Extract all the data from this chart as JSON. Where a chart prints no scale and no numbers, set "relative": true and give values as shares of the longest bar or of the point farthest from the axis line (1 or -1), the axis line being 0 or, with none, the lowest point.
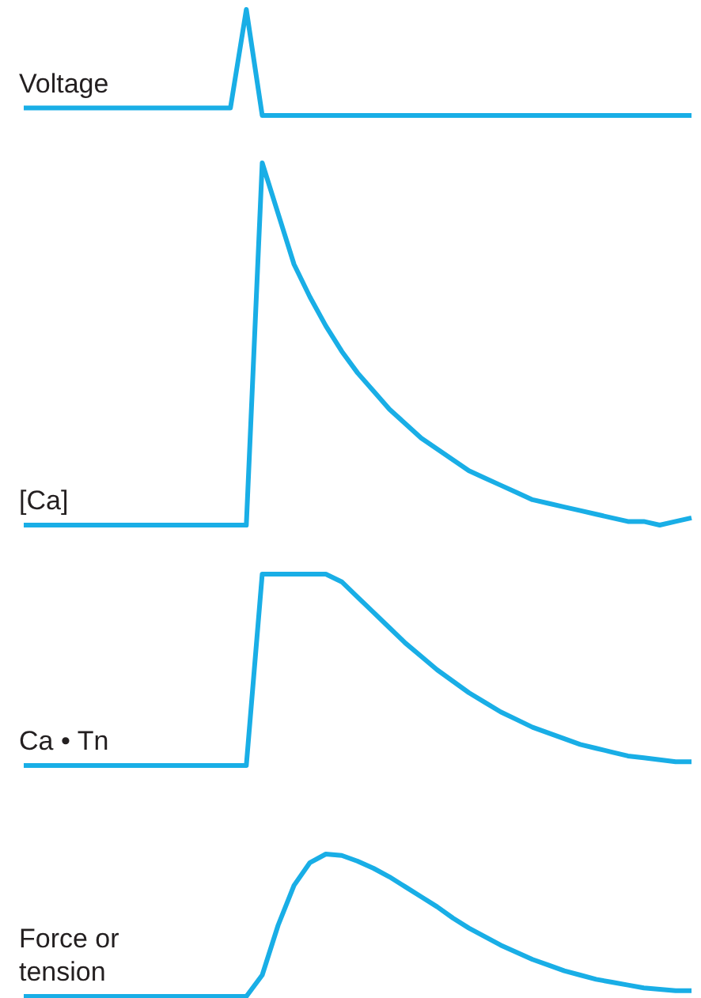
{
  "chart_data": [
    {
      "type": "line",
      "relative": true,
      "legend": false,
      "marker": "none",
      "categories": [
        null,
        null,
        null,
        null,
        null,
        null,
        null,
        null,
        null,
        null,
        null,
        null,
        null,
        null,
        null,
        null,
        null,
        null,
        null,
        null,
        null,
        null,
        null,
        null,
        null,
        null,
        null,
        null,
        null,
        null,
        null,
        null,
        null,
        null,
        null,
        null,
        null,
        null,
        null,
        null,
        null,
        null,
        null
      ],
      "series": [
        {
          "name": "Voltage",
          "color": "#19aee6",
          "values": [
            0.07,
            0.07,
            0.07,
            0.07,
            0.07,
            0.07,
            0.07,
            0.07,
            0.07,
            0.07,
            0.07,
            0.07,
            0.07,
            0.07,
            1,
            0,
            0,
            0,
            0,
            0,
            0,
            0,
            0,
            0,
            0,
            0,
            0,
            0,
            0,
            0,
            0,
            0,
            0,
            0,
            0,
            0,
            0,
            0,
            0,
            0,
            0,
            0,
            0
          ]
        }
      ]
    },
    {
      "type": "line",
      "relative": true,
      "legend": false,
      "marker": "none",
      "categories": [
        null,
        null,
        null,
        null,
        null,
        null,
        null,
        null,
        null,
        null,
        null,
        null,
        null,
        null,
        null,
        null,
        null,
        null,
        null,
        null,
        null,
        null,
        null,
        null,
        null,
        null,
        null,
        null,
        null,
        null,
        null,
        null,
        null,
        null,
        null,
        null,
        null,
        null,
        null,
        null,
        null,
        null,
        null
      ],
      "series": [
        {
          "name": "[Ca]",
          "color": "#19aee6",
          "values": [
            0,
            0,
            0,
            0,
            0,
            0,
            0,
            0,
            0,
            0,
            0,
            0,
            0,
            0,
            0,
            1,
            0.86,
            0.72,
            0.63,
            0.55,
            0.48,
            0.42,
            0.37,
            0.32,
            0.28,
            0.24,
            0.21,
            0.18,
            0.15,
            0.13,
            0.11,
            0.09,
            0.07,
            0.06,
            0.05,
            0.04,
            0.03,
            0.02,
            0.01,
            0.01,
            0,
            0.01,
            0.02
          ]
        }
      ]
    },
    {
      "type": "line",
      "relative": true,
      "legend": false,
      "marker": "none",
      "categories": [
        null,
        null,
        null,
        null,
        null,
        null,
        null,
        null,
        null,
        null,
        null,
        null,
        null,
        null,
        null,
        null,
        null,
        null,
        null,
        null,
        null,
        null,
        null,
        null,
        null,
        null,
        null,
        null,
        null,
        null,
        null,
        null,
        null,
        null,
        null,
        null,
        null,
        null,
        null,
        null,
        null,
        null,
        null
      ],
      "series": [
        {
          "name": "Ca • Tn",
          "color": "#19aee6",
          "values": [
            0,
            0,
            0,
            0,
            0,
            0,
            0,
            0,
            0,
            0,
            0,
            0,
            0,
            0,
            0,
            1,
            1,
            1,
            1,
            1,
            0.96,
            0.88,
            0.8,
            0.72,
            0.64,
            0.57,
            0.5,
            0.44,
            0.38,
            0.33,
            0.28,
            0.24,
            0.2,
            0.17,
            0.14,
            0.11,
            0.09,
            0.07,
            0.05,
            0.04,
            0.03,
            0.02,
            0.02
          ]
        }
      ]
    },
    {
      "type": "line",
      "relative": true,
      "legend": false,
      "marker": "none",
      "categories": [
        null,
        null,
        null,
        null,
        null,
        null,
        null,
        null,
        null,
        null,
        null,
        null,
        null,
        null,
        null,
        null,
        null,
        null,
        null,
        null,
        null,
        null,
        null,
        null,
        null,
        null,
        null,
        null,
        null,
        null,
        null,
        null,
        null,
        null,
        null,
        null,
        null,
        null,
        null,
        null,
        null,
        null,
        null
      ],
      "series": [
        {
          "name": "Force or tension",
          "color": "#19aee6",
          "values": [
            0,
            0,
            0,
            0,
            0,
            0,
            0,
            0,
            0,
            0,
            0,
            0,
            0,
            0,
            0,
            0.15,
            0.5,
            0.78,
            0.94,
            1,
            0.99,
            0.95,
            0.9,
            0.84,
            0.77,
            0.7,
            0.63,
            0.55,
            0.48,
            0.42,
            0.36,
            0.31,
            0.26,
            0.22,
            0.18,
            0.15,
            0.12,
            0.1,
            0.08,
            0.06,
            0.05,
            0.04,
            0.04
          ]
        }
      ]
    }
  ]
}
